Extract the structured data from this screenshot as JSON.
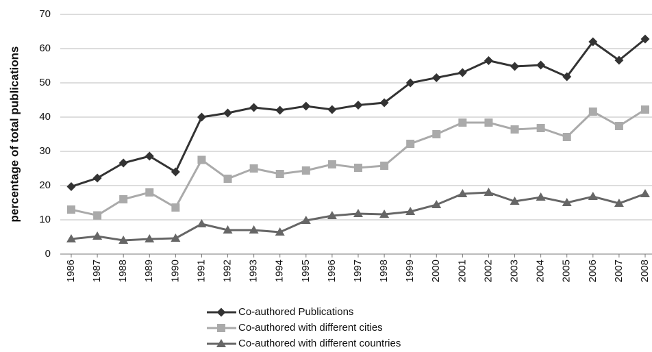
{
  "chart_data": {
    "type": "line",
    "y_label": "percentage of total publications",
    "categories": [
      "1986",
      "1987",
      "1988",
      "1989",
      "1990",
      "1991",
      "1992",
      "1993",
      "1994",
      "1995",
      "1996",
      "1997",
      "1998",
      "1999",
      "2000",
      "2001",
      "2002",
      "2003",
      "2004",
      "2005",
      "2006",
      "2007",
      "2008"
    ],
    "series": [
      {
        "name": "Co-authored Publications",
        "color": "#333333",
        "marker": "diamond",
        "values": [
          19.7,
          22.2,
          26.6,
          28.6,
          24,
          40,
          41.2,
          42.8,
          42,
          43.2,
          42.2,
          43.5,
          44.2,
          50,
          51.5,
          53,
          56.5,
          54.8,
          55.2,
          51.8,
          62,
          56.6,
          62.8
        ]
      },
      {
        "name": "Co-authored with different cities",
        "color": "#aaaaaa",
        "marker": "square",
        "values": [
          13,
          11.3,
          16,
          18,
          13.6,
          27.5,
          22,
          25,
          23.4,
          24.4,
          26.2,
          25.2,
          25.8,
          32.2,
          35,
          38.4,
          38.4,
          36.4,
          36.8,
          34.2,
          41.6,
          37.4,
          42.2
        ]
      },
      {
        "name": "Co-authored with different countries",
        "color": "#666666",
        "marker": "triangle",
        "values": [
          4.4,
          5.2,
          4,
          4.4,
          4.6,
          8.8,
          7,
          7,
          6.4,
          9.8,
          11.2,
          11.8,
          11.6,
          12.4,
          14.4,
          17.6,
          18,
          15.4,
          16.6,
          15,
          16.8,
          14.8,
          17.6
        ]
      }
    ],
    "ylim": [
      0,
      70
    ],
    "yticks": [
      0,
      10,
      20,
      30,
      40,
      50,
      60,
      70
    ],
    "grid": true,
    "legend": "bottom"
  }
}
